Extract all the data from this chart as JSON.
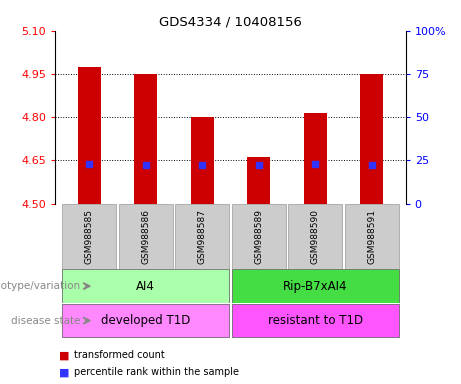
{
  "title": "GDS4334 / 10408156",
  "samples": [
    "GSM988585",
    "GSM988586",
    "GSM988587",
    "GSM988589",
    "GSM988590",
    "GSM988591"
  ],
  "bar_values": [
    4.975,
    4.95,
    4.8,
    4.663,
    4.815,
    4.95
  ],
  "percentile_y": [
    4.637,
    4.634,
    4.634,
    4.634,
    4.637,
    4.634
  ],
  "bar_base": 4.5,
  "ylim": [
    4.5,
    5.1
  ],
  "yticks": [
    4.5,
    4.65,
    4.8,
    4.95,
    5.1
  ],
  "y2lim": [
    0,
    100
  ],
  "y2ticks": [
    0,
    25,
    50,
    75,
    100
  ],
  "y2ticklabels": [
    "0",
    "25",
    "50",
    "75",
    "100%"
  ],
  "bar_color": "#cc0000",
  "percentile_color": "#3333ff",
  "bar_width": 0.4,
  "groups": [
    {
      "label": "AI4",
      "samples": [
        0,
        1,
        2
      ],
      "color": "#aaffaa"
    },
    {
      "label": "Rip-B7xAI4",
      "samples": [
        3,
        4,
        5
      ],
      "color": "#44dd44"
    }
  ],
  "disease_groups": [
    {
      "label": "developed T1D",
      "samples": [
        0,
        1,
        2
      ],
      "color": "#ff88ff"
    },
    {
      "label": "resistant to T1D",
      "samples": [
        3,
        4,
        5
      ],
      "color": "#ff55ff"
    }
  ],
  "genotype_label": "genotype/variation",
  "disease_label": "disease state",
  "legend_items": [
    {
      "color": "#cc0000",
      "label": "transformed count"
    },
    {
      "color": "#3333ff",
      "label": "percentile rank within the sample"
    }
  ],
  "sample_box_color": "#cccccc",
  "label_color": "#888888",
  "grid_lines": [
    4.65,
    4.8,
    4.95
  ]
}
